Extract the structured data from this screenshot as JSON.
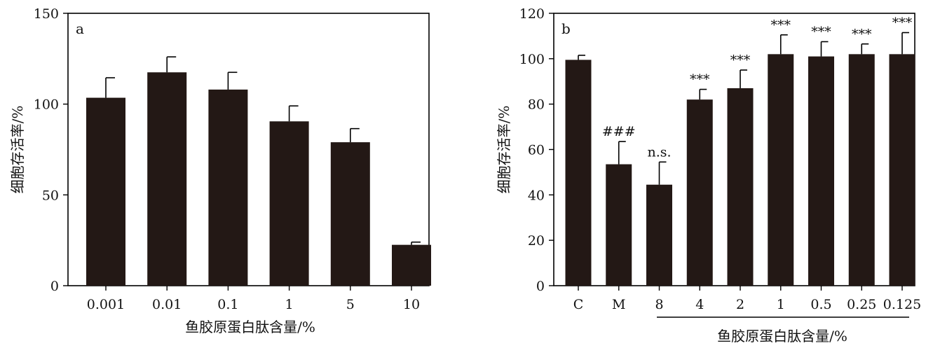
{
  "chart_data": [
    {
      "type": "bar",
      "panel_label": "a",
      "categories": [
        "0.001",
        "0.01",
        "0.1",
        "1",
        "5",
        "10"
      ],
      "values": [
        103.5,
        117.5,
        108,
        90.5,
        79,
        22.5
      ],
      "errors": [
        11,
        8.5,
        9.5,
        8.5,
        7.5,
        1.5
      ],
      "xlabel": "鱼胶原蛋白肽含量/%",
      "ylabel": "细胞存活率/%",
      "ylim": [
        0,
        150
      ],
      "yticks": [
        0,
        50,
        100,
        150
      ],
      "grid": false,
      "bar_color": "#231815"
    },
    {
      "type": "bar",
      "panel_label": "b",
      "categories": [
        "C",
        "M",
        "8",
        "4",
        "2",
        "1",
        "0.5",
        "0.25",
        "0.125"
      ],
      "values": [
        99.5,
        53.5,
        44.5,
        82,
        87,
        102,
        101,
        102,
        102
      ],
      "errors": [
        2,
        10,
        10,
        4.5,
        8,
        8.5,
        6.5,
        4.5,
        9.5
      ],
      "annotations": [
        "",
        "###",
        "n.s.",
        "***",
        "***",
        "***",
        "***",
        "***",
        "***"
      ],
      "xlabel": "鱼胶原蛋白肽含量/%",
      "ylabel": "细胞存活率/%",
      "ylim": [
        0,
        120
      ],
      "yticks": [
        0,
        20,
        40,
        60,
        80,
        100,
        120
      ],
      "grid": false,
      "bar_color": "#231815"
    }
  ]
}
